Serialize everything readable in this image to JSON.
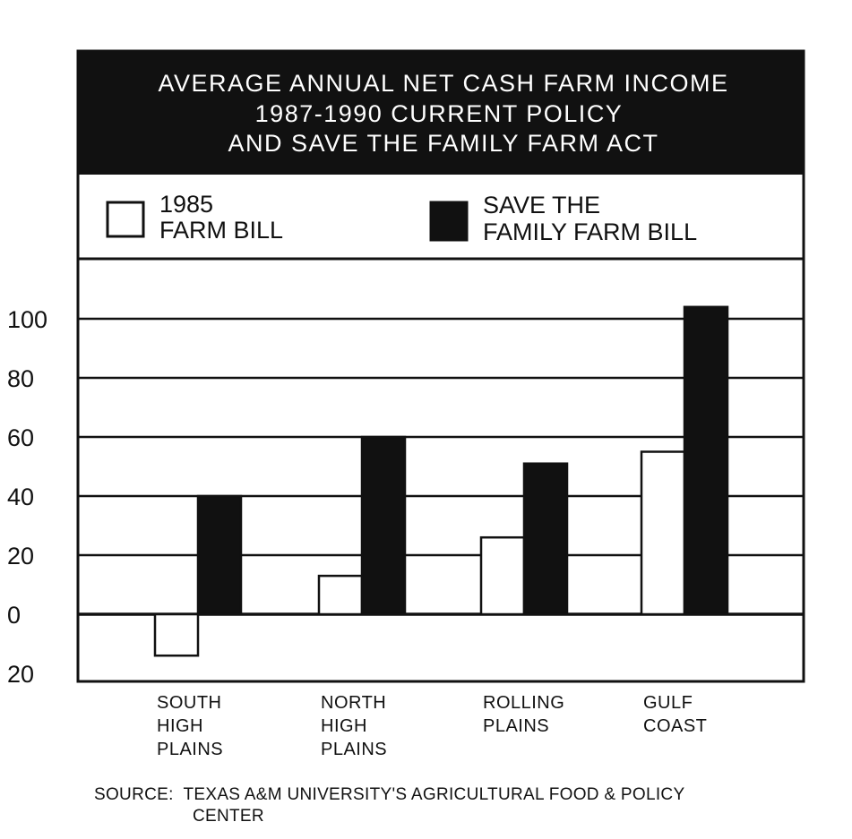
{
  "chart_data": {
    "type": "bar",
    "title_lines": [
      "AVERAGE ANNUAL NET CASH FARM INCOME",
      "1987-1990 CURRENT POLICY",
      "AND SAVE THE FAMILY FARM ACT"
    ],
    "legend": [
      {
        "lines": [
          "1985",
          "FARM BILL"
        ],
        "color": "#ffffff"
      },
      {
        "lines": [
          "SAVE THE",
          "FAMILY FARM BILL"
        ],
        "color": "#111111"
      }
    ],
    "categories": [
      [
        "SOUTH",
        "HIGH",
        "PLAINS"
      ],
      [
        "NORTH",
        "HIGH",
        "PLAINS"
      ],
      [
        "ROLLING",
        "PLAINS"
      ],
      [
        "GULF",
        "COAST"
      ]
    ],
    "series": [
      {
        "values": [
          -14,
          13,
          26,
          55
        ],
        "color": "#ffffff"
      },
      {
        "values": [
          40,
          60,
          51,
          104
        ],
        "color": "#111111"
      }
    ],
    "y_ticks": [
      100,
      80,
      60,
      40,
      20,
      0,
      -20
    ],
    "y_tick_labels": [
      "100",
      "80",
      "60",
      "40",
      "20",
      "0",
      "20"
    ],
    "ylim": [
      -22,
      125
    ],
    "grid": true,
    "legend_position": "top"
  },
  "source_lines": [
    "SOURCE:  TEXAS A&M UNIVERSITY'S AGRICULTURAL FOOD & POLICY",
    "CENTER"
  ]
}
